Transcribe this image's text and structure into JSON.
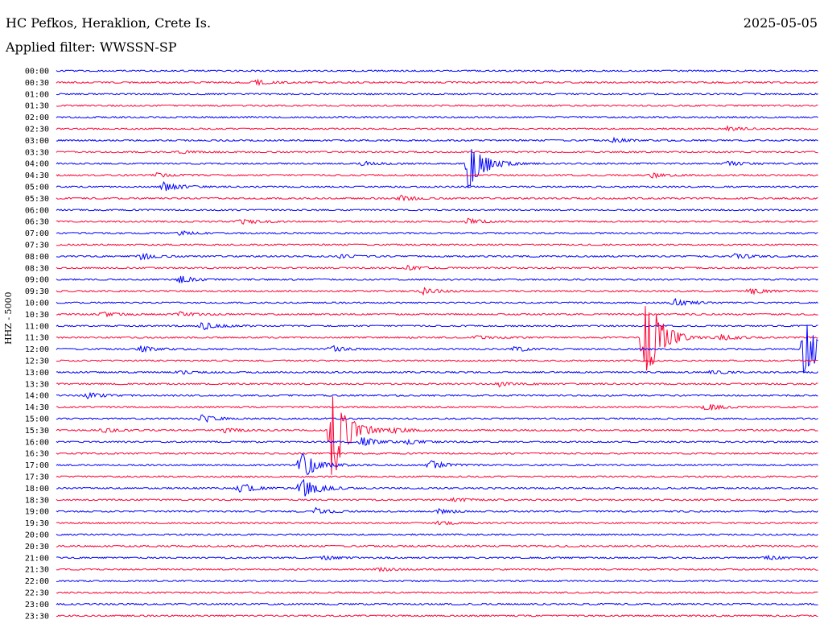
{
  "header": {
    "station": "HC Pefkos, Heraklion, Crete Is.",
    "date": "2025-05-05",
    "filter": "Applied filter: WWSSN-SP"
  },
  "channel_label": "HHZ - 5000",
  "colors": {
    "even_rows": "#0000ff",
    "odd_rows": "#ff0033",
    "background": "#ffffff"
  },
  "chart_data": {
    "type": "line",
    "title": "HC Pefkos, Heraklion, Crete Is.",
    "subtitle": "Applied filter: WWSSN-SP",
    "xlabel": "",
    "ylabel": "HHZ - 5000",
    "rows": [
      "00:00",
      "00:30",
      "01:00",
      "01:30",
      "02:00",
      "02:30",
      "03:00",
      "03:30",
      "04:00",
      "04:30",
      "05:00",
      "05:30",
      "06:00",
      "06:30",
      "07:00",
      "07:30",
      "08:00",
      "08:30",
      "09:00",
      "09:30",
      "10:00",
      "10:30",
      "11:00",
      "11:30",
      "12:00",
      "12:30",
      "13:00",
      "13:30",
      "14:00",
      "14:30",
      "15:00",
      "15:30",
      "16:00",
      "16:30",
      "17:00",
      "17:30",
      "18:00",
      "18:30",
      "19:00",
      "19:30",
      "20:00",
      "20:30",
      "21:00",
      "21:30",
      "22:00",
      "22:30",
      "23:00",
      "23:30"
    ],
    "row_duration_minutes": 30,
    "grid": false,
    "events": [
      {
        "row": 1,
        "t": 0.26,
        "amp": 6
      },
      {
        "row": 3,
        "t": 0.0,
        "amp": 0
      },
      {
        "row": 5,
        "t": 0.88,
        "amp": 4
      },
      {
        "row": 6,
        "t": 0.73,
        "amp": 4
      },
      {
        "row": 7,
        "t": 0.16,
        "amp": 3
      },
      {
        "row": 8,
        "t": 0.54,
        "amp": 58
      },
      {
        "row": 8,
        "t": 0.4,
        "amp": 5
      },
      {
        "row": 8,
        "t": 0.88,
        "amp": 5
      },
      {
        "row": 9,
        "t": 0.13,
        "amp": 5
      },
      {
        "row": 9,
        "t": 0.78,
        "amp": 5
      },
      {
        "row": 10,
        "t": 0.14,
        "amp": 10
      },
      {
        "row": 11,
        "t": 0.45,
        "amp": 6
      },
      {
        "row": 13,
        "t": 0.24,
        "amp": 5
      },
      {
        "row": 13,
        "t": 0.54,
        "amp": 6
      },
      {
        "row": 14,
        "t": 0.16,
        "amp": 4
      },
      {
        "row": 16,
        "t": 0.11,
        "amp": 7
      },
      {
        "row": 16,
        "t": 0.37,
        "amp": 4
      },
      {
        "row": 16,
        "t": 0.89,
        "amp": 6
      },
      {
        "row": 17,
        "t": 0.46,
        "amp": 4
      },
      {
        "row": 18,
        "t": 0.16,
        "amp": 8
      },
      {
        "row": 19,
        "t": 0.48,
        "amp": 6
      },
      {
        "row": 19,
        "t": 0.91,
        "amp": 6
      },
      {
        "row": 20,
        "t": 0.81,
        "amp": 8
      },
      {
        "row": 21,
        "t": 0.06,
        "amp": 5
      },
      {
        "row": 21,
        "t": 0.16,
        "amp": 5
      },
      {
        "row": 22,
        "t": 0.19,
        "amp": 9
      },
      {
        "row": 23,
        "t": 0.77,
        "amp": 110
      },
      {
        "row": 23,
        "t": 0.55,
        "amp": 4
      },
      {
        "row": 23,
        "t": 0.87,
        "amp": 6
      },
      {
        "row": 24,
        "t": 0.98,
        "amp": 70
      },
      {
        "row": 24,
        "t": 0.11,
        "amp": 6
      },
      {
        "row": 24,
        "t": 0.36,
        "amp": 7
      },
      {
        "row": 24,
        "t": 0.6,
        "amp": 5
      },
      {
        "row": 26,
        "t": 0.16,
        "amp": 4
      },
      {
        "row": 26,
        "t": 0.86,
        "amp": 4
      },
      {
        "row": 27,
        "t": 0.58,
        "amp": 5
      },
      {
        "row": 28,
        "t": 0.04,
        "amp": 6
      },
      {
        "row": 29,
        "t": 0.85,
        "amp": 8
      },
      {
        "row": 30,
        "t": 0.19,
        "amp": 8
      },
      {
        "row": 31,
        "t": 0.36,
        "amp": 120
      },
      {
        "row": 31,
        "t": 0.06,
        "amp": 5
      },
      {
        "row": 31,
        "t": 0.22,
        "amp": 5
      },
      {
        "row": 31,
        "t": 0.44,
        "amp": 5
      },
      {
        "row": 32,
        "t": 0.4,
        "amp": 10
      },
      {
        "row": 32,
        "t": 0.46,
        "amp": 4
      },
      {
        "row": 34,
        "t": 0.49,
        "amp": 9
      },
      {
        "row": 34,
        "t": 0.32,
        "amp": 30
      },
      {
        "row": 36,
        "t": 0.32,
        "amp": 24
      },
      {
        "row": 36,
        "t": 0.24,
        "amp": 10
      },
      {
        "row": 37,
        "t": 0.52,
        "amp": 4
      },
      {
        "row": 38,
        "t": 0.34,
        "amp": 6
      },
      {
        "row": 38,
        "t": 0.5,
        "amp": 5
      },
      {
        "row": 39,
        "t": 0.5,
        "amp": 4
      },
      {
        "row": 42,
        "t": 0.35,
        "amp": 4
      },
      {
        "row": 42,
        "t": 0.93,
        "amp": 4
      },
      {
        "row": 43,
        "t": 0.42,
        "amp": 4
      }
    ]
  }
}
